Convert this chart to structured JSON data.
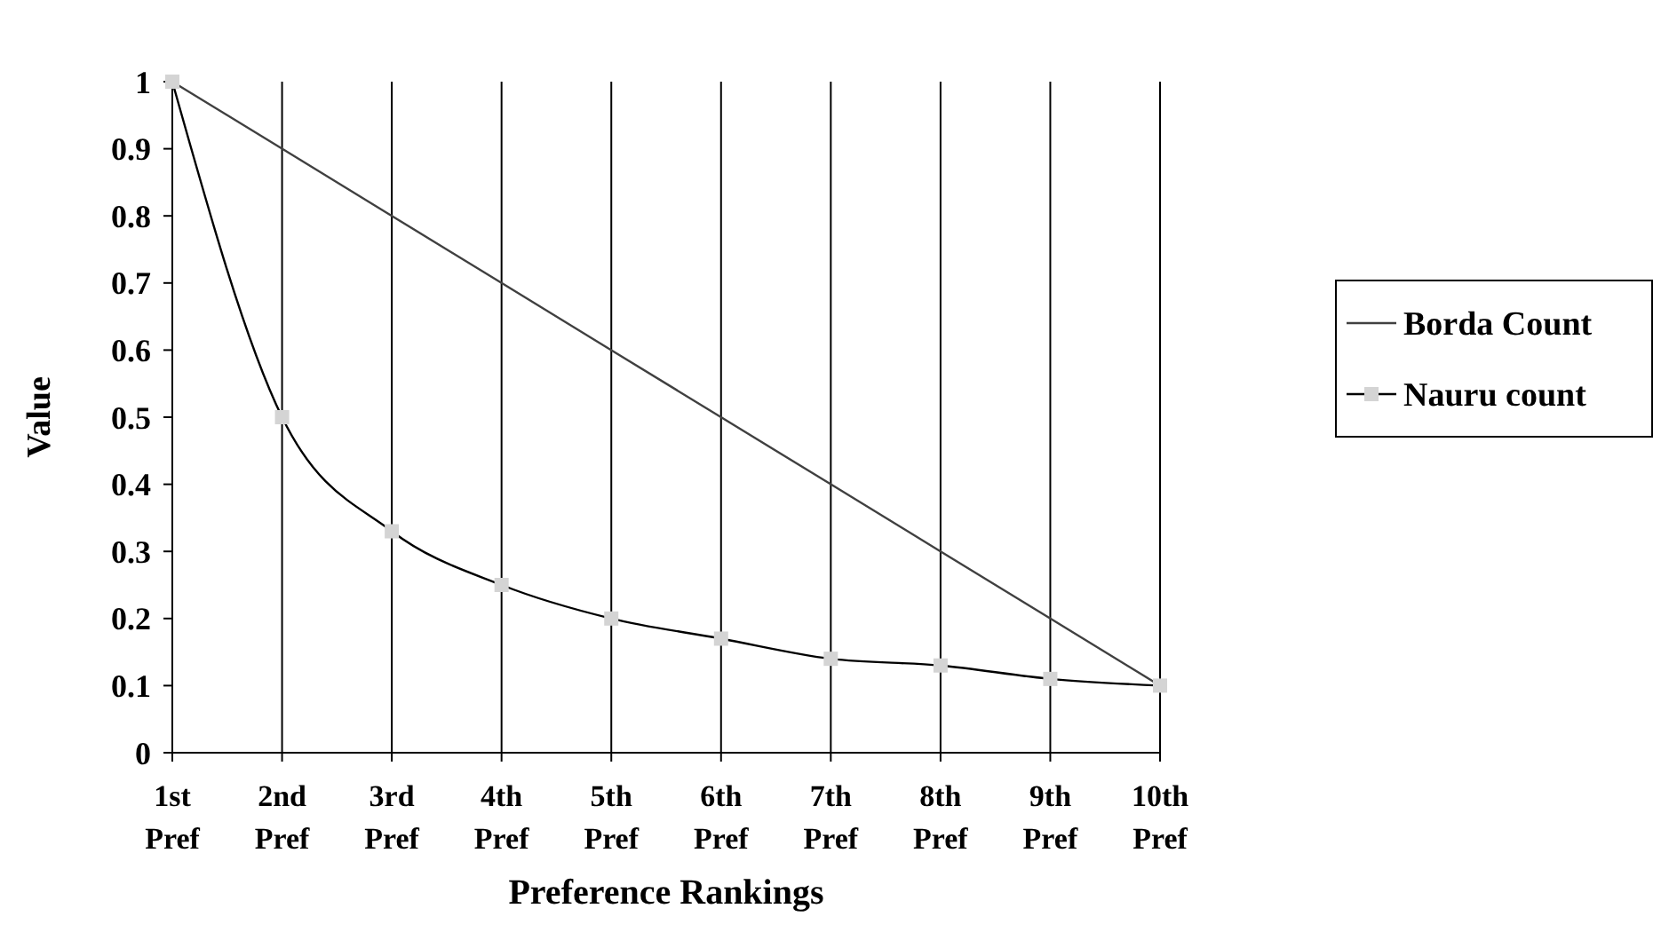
{
  "chart_data": {
    "type": "line",
    "xlabel": "Preference Rankings",
    "ylabel": "Value",
    "categories": [
      "1st Pref",
      "2nd Pref",
      "3rd Pref",
      "4th Pref",
      "5th Pref",
      "6th Pref",
      "7th Pref",
      "8th Pref",
      "9th Pref",
      "10th Pref"
    ],
    "series": [
      {
        "name": "Borda Count",
        "color": "#404040",
        "marker": "none",
        "values": [
          1,
          0.9,
          0.8,
          0.7,
          0.6,
          0.5,
          0.4,
          0.3,
          0.2,
          0.1
        ]
      },
      {
        "name": "Nauru count",
        "color": "#000000",
        "marker": "square",
        "values": [
          1,
          0.5,
          0.33,
          0.25,
          0.2,
          0.17,
          0.14,
          0.13,
          0.11,
          0.1
        ]
      }
    ],
    "ylim": [
      0,
      1
    ],
    "yticks": [
      0,
      0.1,
      0.2,
      0.3,
      0.4,
      0.5,
      0.6,
      0.7,
      0.8,
      0.9,
      1
    ],
    "grid": "x",
    "legend": "right"
  }
}
